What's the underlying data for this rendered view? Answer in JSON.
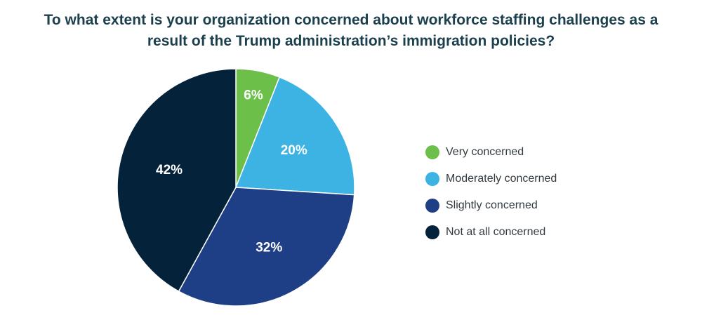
{
  "chart_data": {
    "type": "pie",
    "title": "To what extent is your organization concerned about workforce staffing challenges as a result of the Trump administration’s immigration policies?",
    "title_lines": [
      "To what extent is your organization concerned about workforce staffing challenges as a",
      "result of the Trump administration’s immigration policies?"
    ],
    "categories": [
      "Very concerned",
      "Moderately concerned",
      "Slightly concerned",
      "Not at all concerned"
    ],
    "values": [
      6,
      20,
      32,
      42
    ],
    "data_labels": [
      "6%",
      "20%",
      "32%",
      "42%"
    ],
    "colors": [
      "#6cc04a",
      "#3db3e3",
      "#1e3f85",
      "#04223a"
    ],
    "start_angle": "12 o'clock",
    "direction": "clockwise",
    "legend": {
      "position": "right",
      "items": [
        "Very concerned",
        "Moderately concerned",
        "Slightly concerned",
        "Not at all concerned"
      ]
    }
  }
}
